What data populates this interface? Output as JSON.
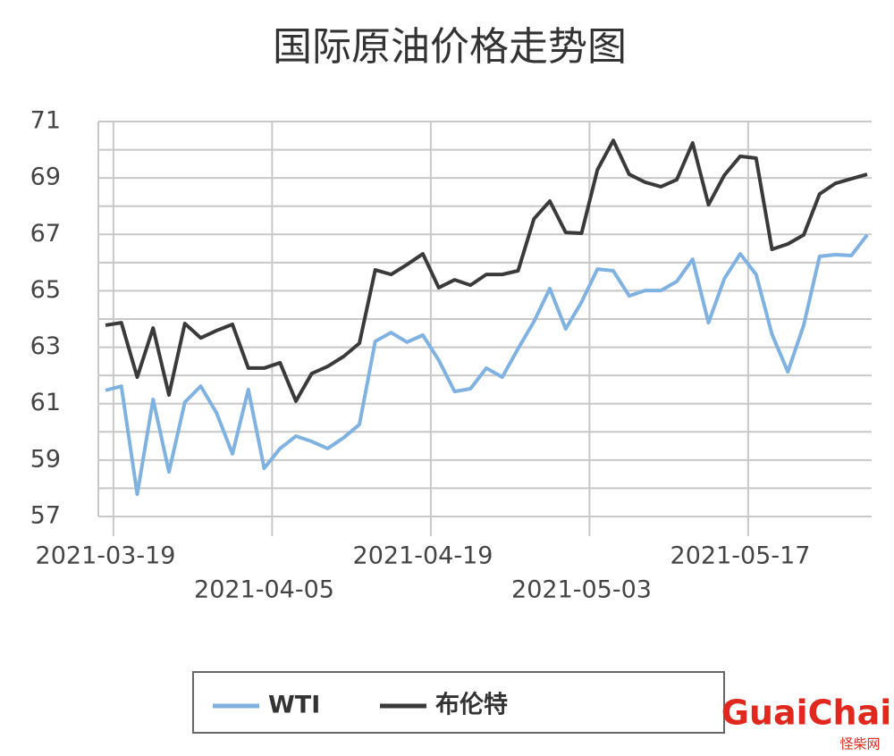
{
  "chart_data": {
    "type": "line",
    "title": "国际原油价格走势图",
    "categories": [
      "2021-03-19",
      null,
      null,
      null,
      null,
      null,
      null,
      null,
      null,
      null,
      "2021-04-05",
      null,
      null,
      null,
      null,
      null,
      null,
      null,
      null,
      null,
      "2021-04-19",
      null,
      null,
      null,
      null,
      null,
      null,
      null,
      null,
      null,
      "2021-05-03",
      null,
      null,
      null,
      null,
      null,
      null,
      null,
      null,
      null,
      "2021-05-17",
      null,
      null,
      null,
      null,
      null,
      null,
      null,
      null
    ],
    "series": [
      {
        "name": "WTI",
        "color": "#7fb2e0",
        "values": [
          61.47,
          61.62,
          57.79,
          61.15,
          58.58,
          61.05,
          61.62,
          60.67,
          59.22,
          61.5,
          58.71,
          59.41,
          59.85,
          59.66,
          59.41,
          59.79,
          60.26,
          63.21,
          63.52,
          63.18,
          63.43,
          62.54,
          61.43,
          61.53,
          62.26,
          61.94,
          62.95,
          63.91,
          65.08,
          63.65,
          64.6,
          65.77,
          65.71,
          64.82,
          65.01,
          65.01,
          65.33,
          66.12,
          63.87,
          65.43,
          66.31,
          65.58,
          63.46,
          62.13,
          63.78,
          66.22,
          66.28,
          66.25,
          66.98
        ]
      },
      {
        "name": "布伦特",
        "color": "#3a3a3a",
        "values": [
          63.78,
          63.87,
          61.94,
          63.68,
          61.31,
          63.84,
          63.33,
          63.59,
          63.81,
          62.26,
          62.26,
          62.45,
          61.09,
          62.07,
          62.32,
          62.67,
          63.14,
          65.74,
          65.58,
          65.93,
          66.31,
          65.11,
          65.39,
          65.2,
          65.58,
          65.58,
          65.71,
          67.55,
          68.18,
          67.07,
          67.04,
          69.29,
          70.33,
          69.13,
          68.85,
          68.69,
          68.94,
          70.24,
          68.05,
          69.1,
          69.77,
          69.7,
          66.47,
          66.66,
          66.98,
          68.43,
          68.81,
          68.97,
          69.13
        ]
      }
    ],
    "ylim": [
      57,
      71
    ],
    "yticks": [
      57,
      59,
      61,
      63,
      65,
      67,
      69,
      71
    ],
    "minor_yticks": [
      58,
      60,
      62,
      64,
      66,
      68,
      70
    ],
    "grid": true,
    "legend": "bottom"
  },
  "watermark": {
    "text": "GuaiChai",
    "subtext": "怪柴网"
  }
}
